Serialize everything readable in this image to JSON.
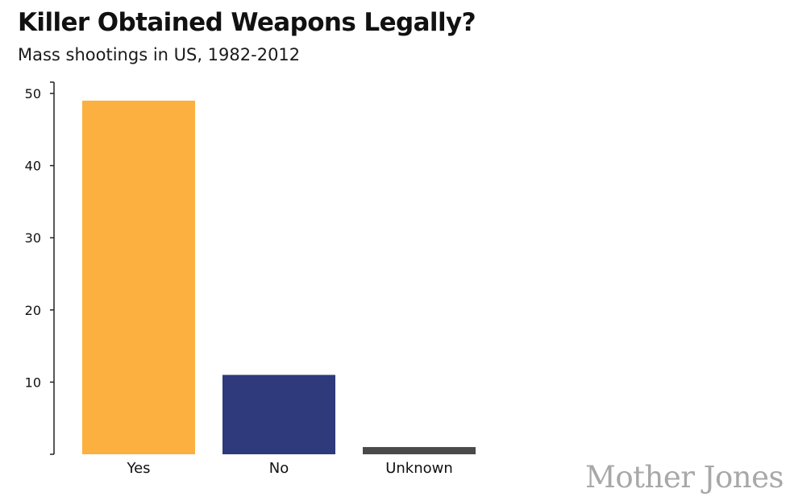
{
  "chart_data": {
    "type": "bar",
    "title": "Killer Obtained Weapons Legally?",
    "subtitle": "Mass shootings in US, 1982-2012",
    "categories": [
      "Yes",
      "No",
      "Unknown"
    ],
    "values": [
      49,
      11,
      1
    ],
    "colors": [
      "#FBB040",
      "#2E3A7C",
      "#4A4A4A"
    ],
    "yticks": [
      10,
      20,
      30,
      40,
      50
    ],
    "ylim": [
      0,
      50
    ],
    "grid": false,
    "legend": "none"
  },
  "brand": "Mother Jones"
}
